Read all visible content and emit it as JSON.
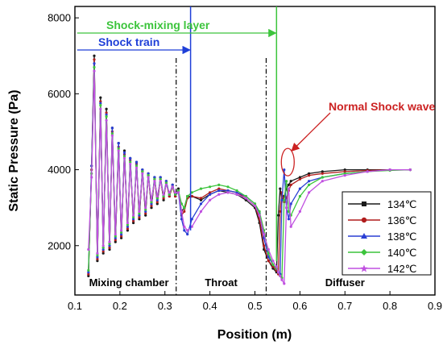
{
  "chart_data": {
    "type": "line",
    "xlabel": "Position (m)",
    "ylabel": "Static Pressure (Pa)",
    "xlim": [
      0.1,
      0.9
    ],
    "ylim": [
      700,
      8300
    ],
    "xticks": [
      0.1,
      0.2,
      0.3,
      0.4,
      0.5,
      0.6,
      0.7,
      0.8,
      0.9
    ],
    "yticks": [
      2000,
      4000,
      6000,
      8000
    ],
    "grid": false,
    "legend_position": "lower-right",
    "dividers": [
      0.325,
      0.525
    ],
    "regions": [
      {
        "label": "Mixing chamber",
        "x": 0.22
      },
      {
        "label": "Throat",
        "x": 0.425
      },
      {
        "label": "Diffuser",
        "x": 0.7
      }
    ],
    "annotations": [
      {
        "text": "Shock-mixing layer",
        "color": "#3cc43c",
        "x_start": 0.105,
        "x_end": 0.548
      },
      {
        "text": "Shock train",
        "color": "#1f3fd8",
        "x_start": 0.105,
        "x_end": 0.357
      },
      {
        "text": "Normal Shock wave",
        "color": "#cc2222",
        "target_x": 0.573,
        "target_y": 4200
      }
    ],
    "series": [
      {
        "name": "134℃",
        "color": "#1a1a1a",
        "marker": "square",
        "shock_x": 0.548,
        "x": [
          0.13,
          0.137,
          0.143,
          0.15,
          0.157,
          0.163,
          0.17,
          0.177,
          0.183,
          0.19,
          0.197,
          0.203,
          0.21,
          0.217,
          0.223,
          0.23,
          0.237,
          0.243,
          0.25,
          0.257,
          0.263,
          0.27,
          0.277,
          0.283,
          0.29,
          0.297,
          0.303,
          0.31,
          0.317,
          0.323,
          0.33,
          0.337,
          0.343,
          0.35,
          0.36,
          0.38,
          0.4,
          0.42,
          0.44,
          0.46,
          0.48,
          0.5,
          0.51,
          0.52,
          0.53,
          0.54,
          0.548,
          0.552,
          0.556,
          0.56,
          0.565,
          0.57,
          0.575,
          0.58,
          0.6,
          0.62,
          0.65,
          0.7,
          0.75,
          0.8,
          0.845
        ],
        "y": [
          1200,
          4100,
          7000,
          1600,
          5900,
          1800,
          5600,
          1900,
          5100,
          2100,
          4700,
          2200,
          4500,
          2400,
          4300,
          2600,
          4200,
          2700,
          4000,
          2800,
          3900,
          3000,
          3800,
          3100,
          3800,
          3200,
          3700,
          3300,
          3600,
          3300,
          3500,
          2900,
          3000,
          3300,
          3300,
          3200,
          3350,
          3450,
          3400,
          3350,
          3200,
          3000,
          2600,
          1900,
          1600,
          1400,
          1300,
          2800,
          3500,
          3200,
          3300,
          3500,
          3600,
          3700,
          3800,
          3900,
          3950,
          4000,
          4000,
          4000,
          4000
        ]
      },
      {
        "name": "136℃",
        "color": "#b01c1c",
        "marker": "circle",
        "shock_x": 0.552,
        "x": [
          0.13,
          0.137,
          0.143,
          0.15,
          0.157,
          0.163,
          0.17,
          0.177,
          0.183,
          0.19,
          0.197,
          0.203,
          0.21,
          0.217,
          0.223,
          0.23,
          0.237,
          0.243,
          0.25,
          0.257,
          0.263,
          0.27,
          0.277,
          0.283,
          0.29,
          0.297,
          0.303,
          0.31,
          0.317,
          0.323,
          0.33,
          0.337,
          0.343,
          0.35,
          0.36,
          0.38,
          0.4,
          0.42,
          0.44,
          0.46,
          0.48,
          0.5,
          0.51,
          0.52,
          0.53,
          0.54,
          0.548,
          0.552,
          0.556,
          0.56,
          0.565,
          0.57,
          0.575,
          0.58,
          0.6,
          0.62,
          0.65,
          0.7,
          0.75,
          0.8,
          0.845
        ],
        "y": [
          1250,
          4000,
          6900,
          1650,
          5800,
          1850,
          5500,
          1950,
          5000,
          2150,
          4600,
          2250,
          4400,
          2450,
          4250,
          2650,
          4150,
          2750,
          3950,
          2850,
          3850,
          3050,
          3750,
          3150,
          3750,
          3250,
          3650,
          3300,
          3550,
          3300,
          3450,
          2800,
          2900,
          3250,
          3300,
          3250,
          3400,
          3500,
          3450,
          3400,
          3250,
          3050,
          2700,
          2000,
          1600,
          1450,
          1350,
          1250,
          2900,
          3400,
          3150,
          3250,
          3450,
          3600,
          3750,
          3850,
          3900,
          3950,
          3980,
          4000,
          4000
        ]
      },
      {
        "name": "138℃",
        "color": "#2a3fd4",
        "marker": "triangle",
        "shock_x": 0.558,
        "x": [
          0.13,
          0.137,
          0.143,
          0.15,
          0.157,
          0.163,
          0.17,
          0.177,
          0.183,
          0.19,
          0.197,
          0.203,
          0.21,
          0.217,
          0.223,
          0.23,
          0.237,
          0.243,
          0.25,
          0.257,
          0.263,
          0.27,
          0.277,
          0.283,
          0.29,
          0.297,
          0.303,
          0.31,
          0.317,
          0.323,
          0.33,
          0.337,
          0.343,
          0.35,
          0.36,
          0.38,
          0.4,
          0.42,
          0.44,
          0.46,
          0.48,
          0.5,
          0.51,
          0.52,
          0.53,
          0.54,
          0.548,
          0.552,
          0.556,
          0.56,
          0.565,
          0.57,
          0.575,
          0.58,
          0.6,
          0.62,
          0.65,
          0.7,
          0.75,
          0.8,
          0.845
        ],
        "y": [
          1300,
          4100,
          6800,
          1700,
          5750,
          1900,
          5450,
          2000,
          5100,
          2200,
          4700,
          2300,
          4450,
          2500,
          4300,
          2700,
          4200,
          2800,
          4000,
          2900,
          3900,
          3100,
          3800,
          3200,
          3800,
          3300,
          3700,
          3350,
          3600,
          3350,
          3400,
          2700,
          2400,
          2300,
          2700,
          3100,
          3350,
          3450,
          3450,
          3400,
          3300,
          3100,
          2850,
          2200,
          1700,
          1500,
          1400,
          1300,
          1250,
          3200,
          4000,
          3000,
          2700,
          3100,
          3500,
          3700,
          3800,
          3900,
          3950,
          4000,
          4000
        ]
      },
      {
        "name": "140℃",
        "color": "#3cc43c",
        "marker": "diamond",
        "shock_x": 0.565,
        "x": [
          0.13,
          0.137,
          0.143,
          0.15,
          0.157,
          0.163,
          0.17,
          0.177,
          0.183,
          0.19,
          0.197,
          0.203,
          0.21,
          0.217,
          0.223,
          0.23,
          0.237,
          0.243,
          0.25,
          0.257,
          0.263,
          0.27,
          0.277,
          0.283,
          0.29,
          0.297,
          0.303,
          0.31,
          0.317,
          0.323,
          0.33,
          0.337,
          0.343,
          0.35,
          0.36,
          0.38,
          0.4,
          0.42,
          0.44,
          0.46,
          0.48,
          0.5,
          0.51,
          0.52,
          0.53,
          0.54,
          0.548,
          0.552,
          0.556,
          0.56,
          0.565,
          0.57,
          0.575,
          0.58,
          0.6,
          0.62,
          0.65,
          0.7,
          0.75,
          0.8,
          0.845
        ],
        "y": [
          1350,
          3900,
          6700,
          1750,
          5700,
          1950,
          5400,
          2050,
          4950,
          2250,
          4550,
          2350,
          4350,
          2550,
          4200,
          2750,
          4100,
          2850,
          3950,
          2950,
          3850,
          3150,
          3750,
          3250,
          3750,
          3300,
          3650,
          3350,
          3550,
          3350,
          3450,
          3100,
          3000,
          3300,
          3400,
          3500,
          3550,
          3600,
          3550,
          3450,
          3300,
          3100,
          2900,
          2400,
          1800,
          1500,
          1400,
          1300,
          1200,
          1150,
          3200,
          3700,
          2900,
          2800,
          3300,
          3600,
          3800,
          3900,
          3950,
          3980,
          4000
        ]
      },
      {
        "name": "142℃",
        "color": "#c050e0",
        "marker": "star",
        "shock_x": 0.575,
        "x": [
          0.13,
          0.137,
          0.143,
          0.15,
          0.157,
          0.163,
          0.17,
          0.177,
          0.183,
          0.19,
          0.197,
          0.203,
          0.21,
          0.217,
          0.223,
          0.23,
          0.237,
          0.243,
          0.25,
          0.257,
          0.263,
          0.27,
          0.277,
          0.283,
          0.29,
          0.297,
          0.303,
          0.31,
          0.317,
          0.323,
          0.33,
          0.337,
          0.343,
          0.35,
          0.36,
          0.38,
          0.4,
          0.42,
          0.44,
          0.46,
          0.48,
          0.5,
          0.51,
          0.52,
          0.53,
          0.54,
          0.548,
          0.552,
          0.556,
          0.56,
          0.565,
          0.57,
          0.575,
          0.58,
          0.6,
          0.62,
          0.65,
          0.7,
          0.75,
          0.8,
          0.845
        ],
        "y": [
          1900,
          3800,
          6600,
          1800,
          5600,
          2000,
          5300,
          2100,
          4900,
          2300,
          4500,
          2400,
          4300,
          2600,
          4150,
          2800,
          4050,
          2900,
          3900,
          3000,
          3800,
          3200,
          3700,
          3300,
          3700,
          3350,
          3600,
          3400,
          3550,
          3400,
          3400,
          2900,
          2500,
          2400,
          2500,
          2900,
          3200,
          3350,
          3400,
          3350,
          3250,
          3050,
          2800,
          2300,
          1900,
          1600,
          1450,
          1300,
          1200,
          1100,
          1000,
          3000,
          3500,
          2500,
          2900,
          3400,
          3700,
          3850,
          3950,
          4000,
          4000
        ]
      }
    ]
  }
}
